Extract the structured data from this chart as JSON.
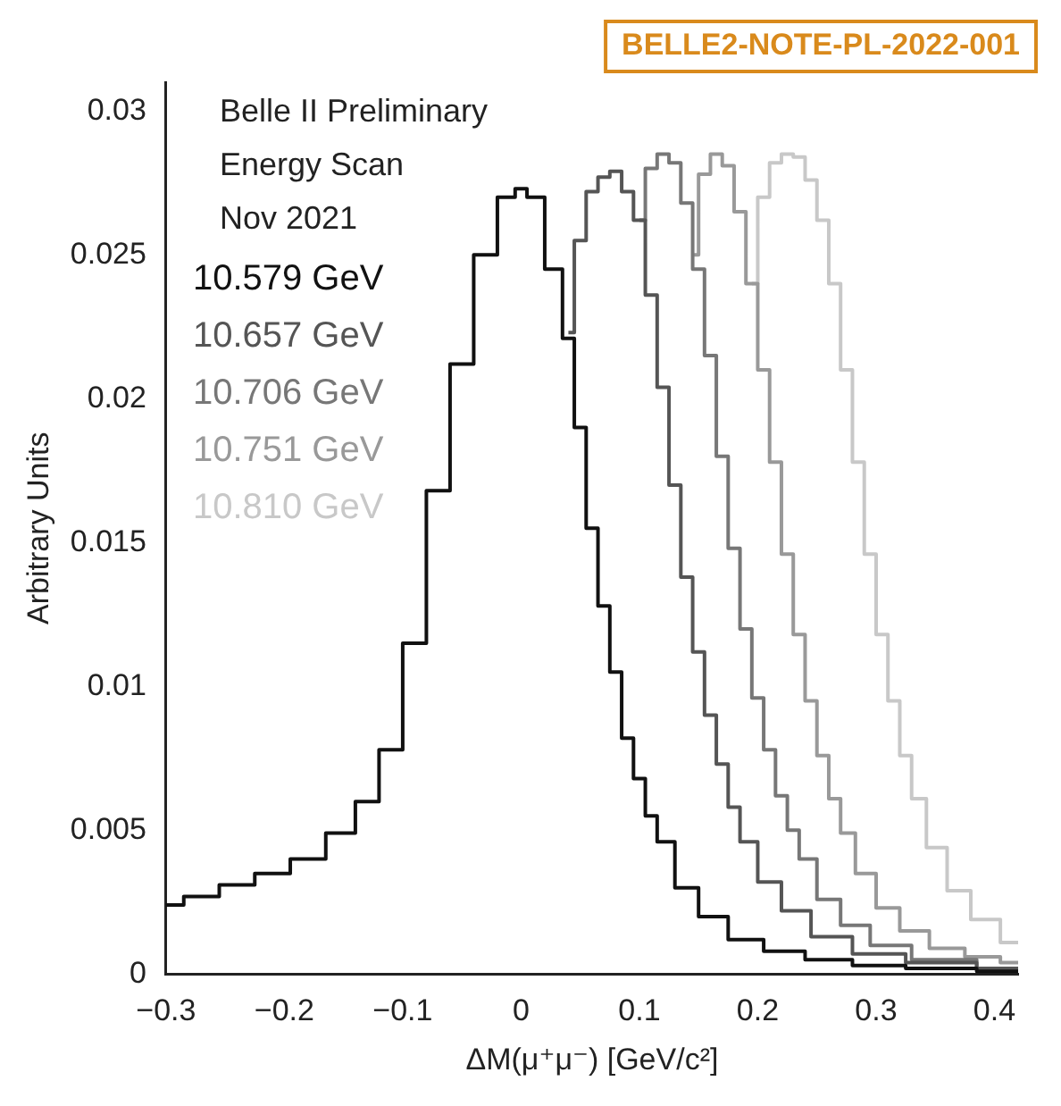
{
  "chart_data": {
    "type": "step",
    "xlabel": "ΔM(μ⁺μ⁻) [GeV/c²]",
    "ylabel": "Arbitrary Units",
    "annotations": [
      "BELLE2-NOTE-PL-2022-001",
      "Belle II Preliminary",
      "Energy Scan",
      "Nov 2021"
    ],
    "xlim": [
      -0.3,
      0.42
    ],
    "ylim": [
      0,
      0.031
    ],
    "xticks": [
      {
        "value": -0.3,
        "label": "−0.3"
      },
      {
        "value": -0.2,
        "label": "−0.2"
      },
      {
        "value": -0.1,
        "label": "−0.1"
      },
      0,
      0.1,
      0.2,
      0.3,
      0.4
    ],
    "yticks": [
      0,
      0.005,
      0.01,
      0.015,
      0.02,
      0.025,
      0.03
    ],
    "grid": false,
    "legend": "top left",
    "marker": "none",
    "line_style": "solid",
    "series": [
      {
        "name": "10.579 GeV",
        "color": "#111111",
        "x": [
          -0.3,
          -0.27,
          -0.24,
          -0.21,
          -0.18,
          -0.15,
          -0.13,
          -0.11,
          -0.09,
          -0.07,
          -0.05,
          -0.03,
          -0.01,
          0.0,
          0.01,
          0.03,
          0.04,
          0.05,
          0.06,
          0.07,
          0.08,
          0.09,
          0.1,
          0.11,
          0.12,
          0.14,
          0.16,
          0.19,
          0.22,
          0.26,
          0.3,
          0.35,
          0.42
        ],
        "values": [
          0.0024,
          0.0027,
          0.0031,
          0.0035,
          0.004,
          0.0049,
          0.006,
          0.0078,
          0.0115,
          0.0168,
          0.0212,
          0.025,
          0.027,
          0.0273,
          0.027,
          0.0245,
          0.0221,
          0.019,
          0.0155,
          0.0128,
          0.0105,
          0.0082,
          0.0068,
          0.0055,
          0.0046,
          0.003,
          0.002,
          0.0012,
          0.0008,
          0.0005,
          0.0003,
          0.0002,
          0.0001
        ]
      },
      {
        "name": "10.657 GeV",
        "color": "#555555",
        "x": [
          0.04,
          0.05,
          0.06,
          0.07,
          0.08,
          0.09,
          0.1,
          0.11,
          0.12,
          0.13,
          0.14,
          0.15,
          0.16,
          0.17,
          0.18,
          0.19,
          0.21,
          0.23,
          0.26,
          0.3,
          0.35,
          0.42
        ],
        "values": [
          0.0223,
          0.0255,
          0.0272,
          0.0277,
          0.0279,
          0.0272,
          0.0262,
          0.0236,
          0.0204,
          0.017,
          0.0138,
          0.0112,
          0.009,
          0.0073,
          0.0058,
          0.0046,
          0.0032,
          0.0022,
          0.0013,
          0.0007,
          0.0004,
          0.0002
        ]
      },
      {
        "name": "10.706 GeV",
        "color": "#777777",
        "x": [
          0.1,
          0.11,
          0.12,
          0.13,
          0.14,
          0.15,
          0.16,
          0.17,
          0.18,
          0.19,
          0.2,
          0.21,
          0.22,
          0.23,
          0.24,
          0.26,
          0.28,
          0.31,
          0.35,
          0.42
        ],
        "values": [
          0.0262,
          0.028,
          0.0285,
          0.0282,
          0.0268,
          0.0245,
          0.0215,
          0.018,
          0.0148,
          0.012,
          0.0096,
          0.0078,
          0.0062,
          0.005,
          0.004,
          0.0026,
          0.0017,
          0.001,
          0.0005,
          0.0002
        ]
      },
      {
        "name": "10.751 GeV",
        "color": "#999999",
        "x": [
          0.145,
          0.155,
          0.165,
          0.175,
          0.185,
          0.195,
          0.205,
          0.215,
          0.225,
          0.235,
          0.245,
          0.255,
          0.265,
          0.275,
          0.29,
          0.31,
          0.33,
          0.36,
          0.39,
          0.42
        ],
        "values": [
          0.025,
          0.0278,
          0.0285,
          0.0281,
          0.0265,
          0.024,
          0.021,
          0.0178,
          0.0146,
          0.0118,
          0.0095,
          0.0076,
          0.0061,
          0.0049,
          0.0035,
          0.0023,
          0.0015,
          0.0009,
          0.0006,
          0.0004
        ]
      },
      {
        "name": "10.810 GeV",
        "color": "#c8c8c8",
        "x": [
          0.195,
          0.205,
          0.215,
          0.225,
          0.235,
          0.245,
          0.255,
          0.265,
          0.275,
          0.285,
          0.295,
          0.305,
          0.315,
          0.325,
          0.335,
          0.35,
          0.37,
          0.39,
          0.42
        ],
        "values": [
          0.024,
          0.027,
          0.0282,
          0.0285,
          0.0284,
          0.0276,
          0.0262,
          0.024,
          0.021,
          0.0178,
          0.0146,
          0.0118,
          0.0095,
          0.0076,
          0.0061,
          0.0044,
          0.0029,
          0.0019,
          0.0011
        ]
      }
    ]
  }
}
